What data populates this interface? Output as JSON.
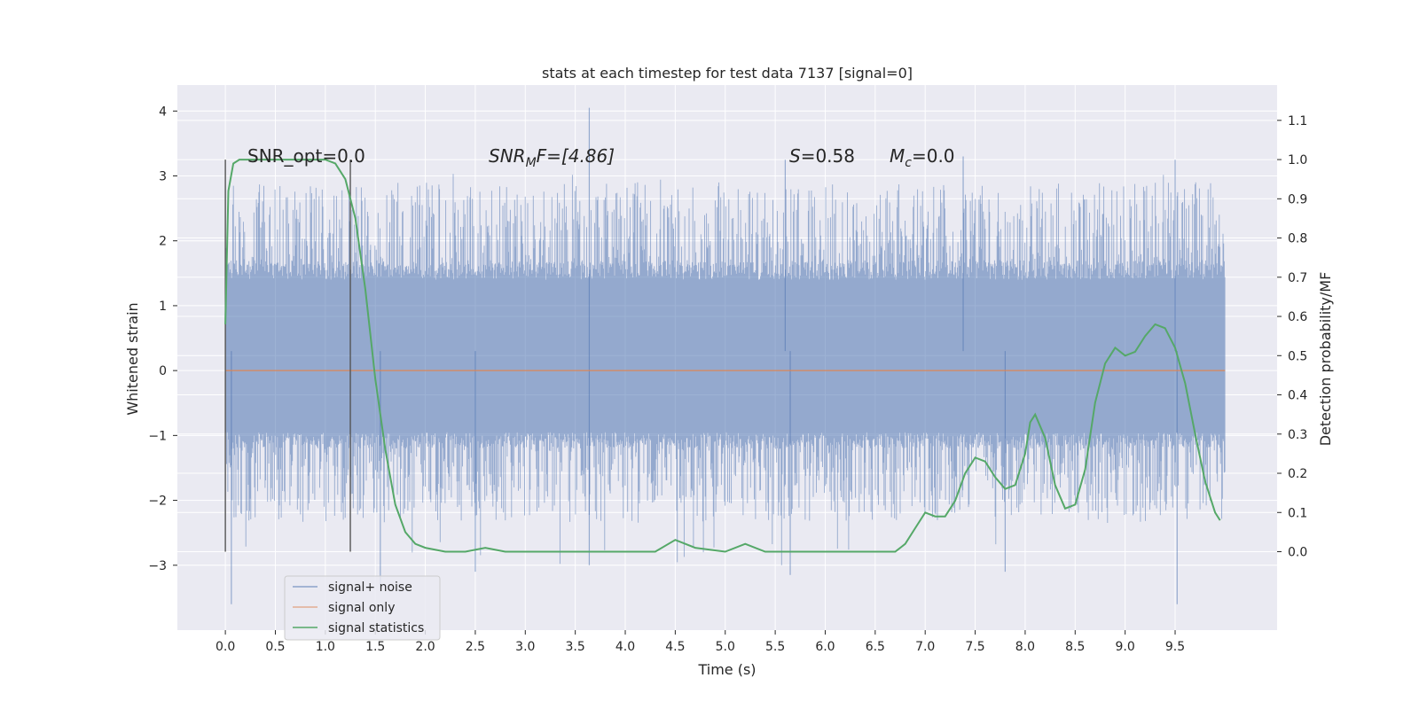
{
  "chart_data": {
    "type": "line",
    "title": "stats at each timestep for test data 7137 [signal=0]",
    "xlabel": "Time (s)",
    "ylabel": "Whitened strain",
    "y2label": "Detection probability/MF",
    "xlim": [
      -0.48,
      10.52
    ],
    "ylim": [
      -4.0,
      4.4
    ],
    "y2lim": [
      -0.2,
      1.19
    ],
    "x_ticks": [
      0.0,
      0.5,
      1.0,
      1.5,
      2.0,
      2.5,
      3.0,
      3.5,
      4.0,
      4.5,
      5.0,
      5.5,
      6.0,
      6.5,
      7.0,
      7.5,
      8.0,
      8.5,
      9.0,
      9.5
    ],
    "x_tick_labels": [
      "0.0",
      "0.5",
      "1.0",
      "1.5",
      "2.0",
      "2.5",
      "3.0",
      "3.5",
      "4.0",
      "4.5",
      "5.0",
      "5.5",
      "6.0",
      "6.5",
      "7.0",
      "7.5",
      "8.0",
      "8.5",
      "9.0",
      "9.5"
    ],
    "y_ticks": [
      -3,
      -2,
      -1,
      0,
      1,
      2,
      3,
      4
    ],
    "y_tick_labels": [
      "−3",
      "−2",
      "−1",
      "0",
      "1",
      "2",
      "3",
      "4"
    ],
    "y2_ticks": [
      0.0,
      0.1,
      0.2,
      0.3,
      0.4,
      0.5,
      0.6,
      0.7,
      0.8,
      0.9,
      1.0,
      1.1
    ],
    "y2_tick_labels": [
      "0.0",
      "0.1",
      "0.2",
      "0.3",
      "0.4",
      "0.5",
      "0.6",
      "0.7",
      "0.8",
      "0.9",
      "1.0",
      "1.1"
    ],
    "grid": true,
    "legend_position": "bottom-left",
    "annotations": {
      "snr_opt": "SNR_opt=0.0",
      "snr_mf_prefix": "SNR",
      "snr_mf_sub": "M",
      "snr_mf_suffix": "F=[4.86]",
      "s_sym": "S",
      "s_val": "=0.58",
      "mc_sym": "M",
      "mc_sub": "c",
      "mc_val": "=0.0"
    },
    "vertical_markers_x": [
      0.0,
      1.25
    ],
    "vertical_markers_y2_range": [
      0.0,
      1.0
    ],
    "series": [
      {
        "name": "signal+ noise",
        "color": "#4c72b0",
        "axis": "left",
        "x_range": [
          0.0,
          10.0
        ],
        "envelope": {
          "typical_low": -0.95,
          "typical_high": 1.4,
          "peak_low": -3.65,
          "peak_high": 4.05
        }
      },
      {
        "name": "signal only",
        "color": "#dd8452",
        "axis": "left",
        "x": [
          0.0,
          10.0
        ],
        "y": [
          0.0,
          0.0
        ]
      },
      {
        "name": "signal statistics",
        "color": "#55a868",
        "axis": "right",
        "x": [
          0.0,
          0.03,
          0.08,
          0.14,
          0.22,
          0.35,
          0.5,
          0.7,
          0.9,
          1.0,
          1.1,
          1.2,
          1.3,
          1.4,
          1.5,
          1.6,
          1.7,
          1.8,
          1.9,
          2.0,
          2.2,
          2.4,
          2.6,
          2.8,
          3.0,
          3.5,
          4.0,
          4.3,
          4.5,
          4.7,
          5.0,
          5.2,
          5.4,
          5.6,
          6.0,
          6.5,
          6.7,
          6.8,
          6.9,
          7.0,
          7.1,
          7.2,
          7.3,
          7.4,
          7.5,
          7.6,
          7.7,
          7.8,
          7.9,
          8.0,
          8.05,
          8.1,
          8.2,
          8.3,
          8.4,
          8.5,
          8.6,
          8.7,
          8.8,
          8.9,
          9.0,
          9.1,
          9.2,
          9.3,
          9.4,
          9.5,
          9.6,
          9.7,
          9.8,
          9.9,
          9.95
        ],
        "y": [
          0.58,
          0.92,
          0.99,
          1.0,
          1.0,
          1.0,
          1.0,
          1.0,
          1.0,
          1.0,
          0.99,
          0.95,
          0.85,
          0.67,
          0.44,
          0.26,
          0.12,
          0.05,
          0.02,
          0.01,
          0.0,
          0.0,
          0.01,
          0.0,
          0.0,
          0.0,
          0.0,
          0.0,
          0.03,
          0.01,
          0.0,
          0.02,
          0.0,
          0.0,
          0.0,
          0.0,
          0.0,
          0.02,
          0.06,
          0.1,
          0.09,
          0.09,
          0.13,
          0.2,
          0.24,
          0.23,
          0.19,
          0.16,
          0.17,
          0.25,
          0.33,
          0.35,
          0.29,
          0.17,
          0.11,
          0.12,
          0.21,
          0.38,
          0.48,
          0.52,
          0.5,
          0.51,
          0.55,
          0.58,
          0.57,
          0.52,
          0.43,
          0.3,
          0.18,
          0.1,
          0.08
        ]
      }
    ]
  }
}
